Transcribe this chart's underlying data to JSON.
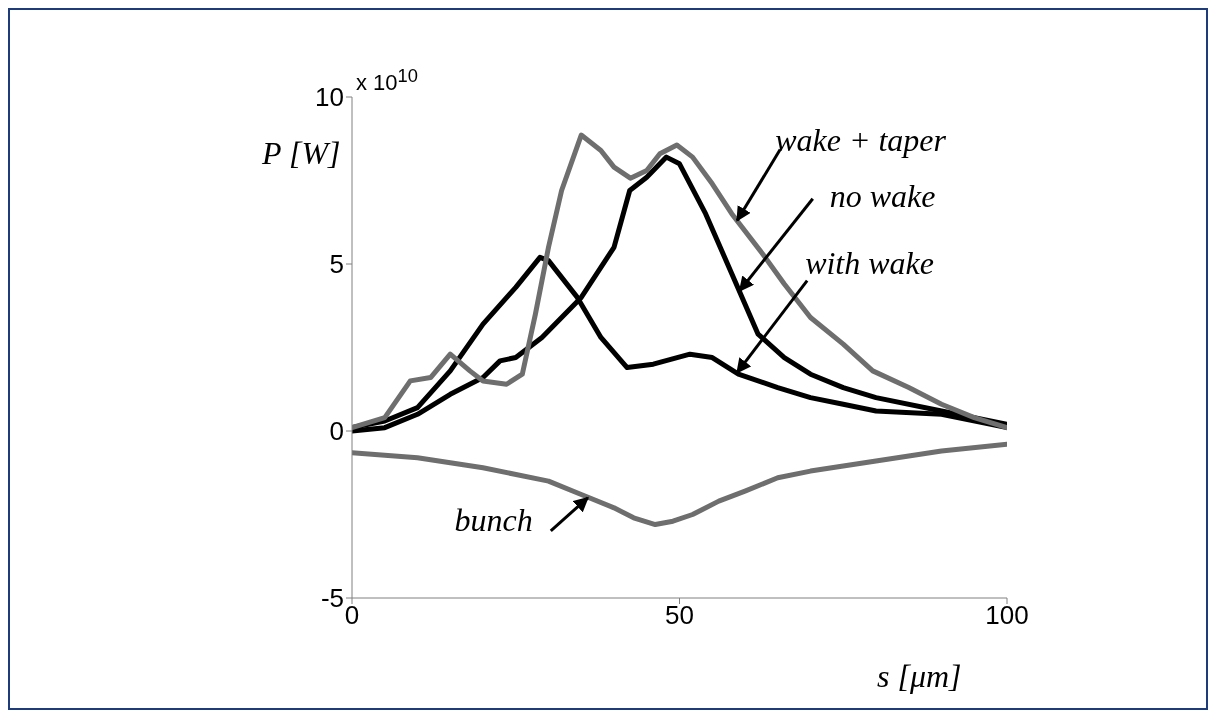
{
  "chart_data": {
    "type": "line",
    "xlabel": "s [μm]",
    "ylabel": "P [W]",
    "xlim": [
      0,
      100
    ],
    "xticks": [
      0,
      50,
      100
    ],
    "ylim": [
      -5,
      10
    ],
    "yticks": [
      -5,
      0,
      5,
      10
    ],
    "series": [
      {
        "color": "#000000",
        "x": [
          0,
          5,
          10,
          15,
          20,
          25,
          28.7,
          30,
          34.4,
          38,
          42,
          46,
          51.6,
          55,
          59,
          65,
          70,
          75,
          80,
          90,
          100
        ],
        "values": [
          0.1,
          0.3,
          0.7,
          1.8,
          3.2,
          4.3,
          5.2,
          5.1,
          4.0,
          2.8,
          1.9,
          2.0,
          2.3,
          2.2,
          1.7,
          1.3,
          1.0,
          0.8,
          0.6,
          0.5,
          0.1
        ]
      },
      {
        "color": "#000000",
        "x": [
          0,
          5,
          10,
          15,
          20,
          22.6,
          25,
          29,
          35,
          40,
          42.4,
          45,
          48,
          50,
          54,
          58,
          62,
          66,
          70,
          75,
          80,
          90,
          100
        ],
        "values": [
          0,
          0.1,
          0.5,
          1.1,
          1.6,
          2.1,
          2.2,
          2.8,
          4.0,
          5.5,
          7.2,
          7.6,
          8.2,
          8.0,
          6.5,
          4.7,
          2.9,
          2.2,
          1.7,
          1.3,
          1.0,
          0.6,
          0.2
        ]
      },
      {
        "color": "#6e6e6e",
        "x": [
          0,
          5,
          8.9,
          12,
          15,
          18,
          20,
          23.6,
          26,
          28,
          30,
          32,
          35,
          38,
          40,
          42.5,
          45,
          47,
          49.6,
          52,
          55,
          58,
          62.7,
          66,
          70,
          75,
          79.5,
          85,
          90,
          95,
          100
        ],
        "values": [
          0.1,
          0.4,
          1.5,
          1.6,
          2.3,
          1.8,
          1.5,
          1.4,
          1.7,
          3.5,
          5.5,
          7.2,
          8.86,
          8.4,
          7.9,
          7.57,
          7.8,
          8.3,
          8.56,
          8.2,
          7.4,
          6.5,
          5.3,
          4.4,
          3.4,
          2.6,
          1.8,
          1.3,
          0.8,
          0.4,
          0.1
        ]
      },
      {
        "color": "#6e6e6e",
        "x": [
          0,
          10,
          20,
          30,
          35,
          40,
          43,
          46.3,
          49,
          52,
          56,
          60,
          65,
          70,
          80,
          90,
          100
        ],
        "values": [
          -0.65,
          -0.8,
          -1.1,
          -1.5,
          -1.9,
          -2.3,
          -2.6,
          -2.8,
          -2.7,
          -2.5,
          -2.1,
          -1.8,
          -1.4,
          -1.2,
          -0.9,
          -0.6,
          -0.4
        ]
      }
    ],
    "annotations": [
      "x 10$^{10}$",
      {
        "text": "wake + taper",
        "x": 58.8,
        "y": 6.3
      },
      {
        "text": "no wake",
        "x": 59.2,
        "y": 4.2
      },
      {
        "text": "with wake",
        "x": 58.8,
        "y": 1.75
      },
      {
        "text": "bunch",
        "x": 36,
        "y": -2.0
      }
    ]
  }
}
